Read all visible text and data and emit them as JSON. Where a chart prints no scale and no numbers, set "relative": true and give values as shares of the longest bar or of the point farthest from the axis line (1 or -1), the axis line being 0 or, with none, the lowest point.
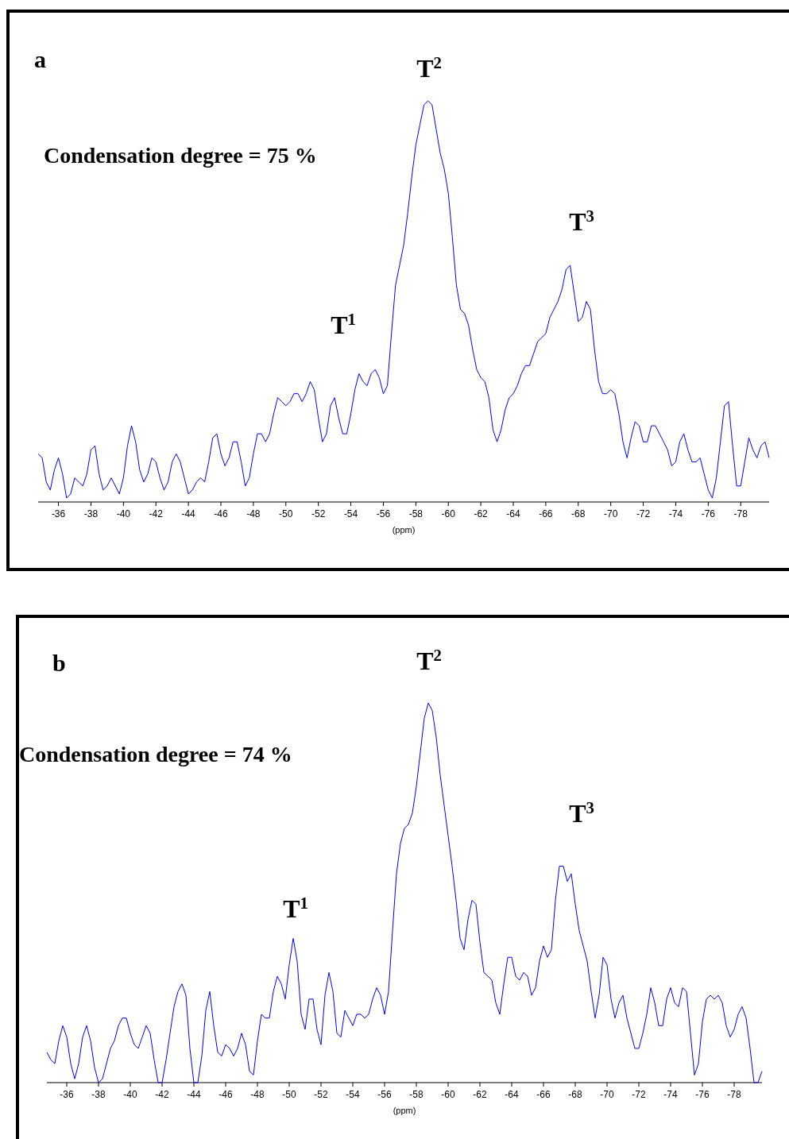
{
  "chart_data": [
    {
      "type": "line",
      "xlabel": "(ppm)",
      "relative": true,
      "xlim": [
        -34.75,
        -79.75
      ],
      "xticks": [
        -36,
        -38,
        -40,
        -42,
        -44,
        -46,
        -48,
        -50,
        -52,
        -54,
        -56,
        -58,
        -60,
        -62,
        -64,
        -66,
        -68,
        -70,
        -72,
        -74,
        -76,
        -78
      ],
      "x": [
        -34.75,
        -35,
        -35.25,
        -35.5,
        -35.75,
        -36,
        -36.25,
        -36.5,
        -36.75,
        -37,
        -37.25,
        -37.5,
        -37.75,
        -38,
        -38.25,
        -38.5,
        -38.75,
        -39,
        -39.25,
        -39.5,
        -39.75,
        -40,
        -40.25,
        -40.5,
        -40.75,
        -41,
        -41.25,
        -41.5,
        -41.75,
        -42,
        -42.25,
        -42.5,
        -42.75,
        -43,
        -43.25,
        -43.5,
        -43.75,
        -44,
        -44.25,
        -44.5,
        -44.75,
        -45,
        -45.25,
        -45.5,
        -45.75,
        -46,
        -46.25,
        -46.5,
        -46.75,
        -47,
        -47.25,
        -47.5,
        -47.75,
        -48,
        -48.25,
        -48.5,
        -48.75,
        -49,
        -49.25,
        -49.5,
        -49.75,
        -50,
        -50.25,
        -50.5,
        -50.75,
        -51,
        -51.25,
        -51.5,
        -51.75,
        -52,
        -52.25,
        -52.5,
        -52.75,
        -53,
        -53.25,
        -53.5,
        -53.75,
        -54,
        -54.25,
        -54.5,
        -54.75,
        -55,
        -55.25,
        -55.5,
        -55.75,
        -56,
        -56.25,
        -56.5,
        -56.75,
        -57,
        -57.25,
        -57.5,
        -57.75,
        -58,
        -58.25,
        -58.5,
        -58.75,
        -59,
        -59.25,
        -59.5,
        -59.75,
        -60,
        -60.25,
        -60.5,
        -60.75,
        -61,
        -61.25,
        -61.5,
        -61.75,
        -62,
        -62.25,
        -62.5,
        -62.75,
        -63,
        -63.25,
        -63.5,
        -63.75,
        -64,
        -64.25,
        -64.5,
        -64.75,
        -65,
        -65.25,
        -65.5,
        -65.75,
        -66,
        -66.25,
        -66.5,
        -66.75,
        -67,
        -67.25,
        -67.5,
        -67.75,
        -68,
        -68.25,
        -68.5,
        -68.75,
        -69,
        -69.25,
        -69.5,
        -69.75,
        -70,
        -70.25,
        -70.5,
        -70.75,
        -71,
        -71.25,
        -71.5,
        -71.75,
        -72,
        -72.25,
        -72.5,
        -72.75,
        -73,
        -73.25,
        -73.5,
        -73.75,
        -74,
        -74.25,
        -74.5,
        -74.75,
        -75,
        -75.25,
        -75.5,
        -75.75,
        -76,
        -76.25,
        -76.5,
        -76.75,
        -77,
        -77.25,
        -77.5,
        -77.75,
        -78,
        -78.25,
        -78.5,
        -78.75,
        -79,
        -79.25,
        -79.5,
        -79.75
      ],
      "series": [
        {
          "color": "#0000ff",
          "values": [
            0.12,
            0.11,
            0.05,
            0.03,
            0.08,
            0.11,
            0.07,
            0.01,
            0.02,
            0.06,
            0.05,
            0.04,
            0.07,
            0.13,
            0.14,
            0.07,
            0.03,
            0.04,
            0.06,
            0.04,
            0.02,
            0.06,
            0.14,
            0.19,
            0.15,
            0.08,
            0.05,
            0.07,
            0.11,
            0.1,
            0.06,
            0.03,
            0.05,
            0.1,
            0.12,
            0.1,
            0.06,
            0.02,
            0.03,
            0.05,
            0.06,
            0.05,
            0.1,
            0.16,
            0.17,
            0.12,
            0.09,
            0.11,
            0.15,
            0.15,
            0.1,
            0.04,
            0.06,
            0.12,
            0.17,
            0.17,
            0.15,
            0.17,
            0.22,
            0.26,
            0.25,
            0.24,
            0.25,
            0.27,
            0.27,
            0.25,
            0.27,
            0.3,
            0.28,
            0.21,
            0.15,
            0.17,
            0.24,
            0.26,
            0.21,
            0.17,
            0.17,
            0.22,
            0.28,
            0.32,
            0.3,
            0.29,
            0.32,
            0.33,
            0.31,
            0.27,
            0.29,
            0.42,
            0.54,
            0.59,
            0.64,
            0.72,
            0.81,
            0.89,
            0.94,
            0.99,
            1,
            0.99,
            0.93,
            0.87,
            0.83,
            0.77,
            0.66,
            0.54,
            0.48,
            0.47,
            0.44,
            0.38,
            0.33,
            0.31,
            0.3,
            0.26,
            0.18,
            0.15,
            0.18,
            0.23,
            0.26,
            0.27,
            0.29,
            0.32,
            0.34,
            0.34,
            0.37,
            0.4,
            0.41,
            0.42,
            0.46,
            0.48,
            0.5,
            0.53,
            0.58,
            0.59,
            0.52,
            0.45,
            0.46,
            0.5,
            0.48,
            0.38,
            0.3,
            0.27,
            0.27,
            0.28,
            0.27,
            0.22,
            0.15,
            0.11,
            0.16,
            0.2,
            0.19,
            0.15,
            0.15,
            0.19,
            0.19,
            0.17,
            0.15,
            0.13,
            0.09,
            0.1,
            0.15,
            0.17,
            0.13,
            0.1,
            0.1,
            0.11,
            0.07,
            0.03,
            0.01,
            0.06,
            0.15,
            0.24,
            0.25,
            0.14,
            0.04,
            0.04,
            0.1,
            0.16,
            0.13,
            0.11,
            0.14,
            0.15,
            0.11
          ]
        }
      ],
      "annotations": [
        "a",
        "Condensation degree = 75 %",
        "T$^{1}$",
        "T$^{2}$",
        "T$^{3}$"
      ]
    },
    {
      "type": "line",
      "xlabel": "(ppm)",
      "relative": true,
      "xlim": [
        -34.75,
        -79.75
      ],
      "xticks": [
        -36,
        -38,
        -40,
        -42,
        -44,
        -46,
        -48,
        -50,
        -52,
        -54,
        -56,
        -58,
        -60,
        -62,
        -64,
        -66,
        -68,
        -70,
        -72,
        -74,
        -76,
        -78
      ],
      "x": [
        -34.75,
        -35,
        -35.25,
        -35.5,
        -35.75,
        -36,
        -36.25,
        -36.5,
        -36.75,
        -37,
        -37.25,
        -37.5,
        -37.75,
        -38,
        -38.25,
        -38.5,
        -38.75,
        -39,
        -39.25,
        -39.5,
        -39.75,
        -40,
        -40.25,
        -40.5,
        -40.75,
        -41,
        -41.25,
        -41.5,
        -41.75,
        -42,
        -42.25,
        -42.5,
        -42.75,
        -43,
        -43.25,
        -43.5,
        -43.75,
        -44,
        -44.25,
        -44.5,
        -44.75,
        -45,
        -45.25,
        -45.5,
        -45.75,
        -46,
        -46.25,
        -46.5,
        -46.75,
        -47,
        -47.25,
        -47.5,
        -47.75,
        -48,
        -48.25,
        -48.5,
        -48.75,
        -49,
        -49.25,
        -49.5,
        -49.75,
        -50,
        -50.25,
        -50.5,
        -50.75,
        -51,
        -51.25,
        -51.5,
        -51.75,
        -52,
        -52.25,
        -52.5,
        -52.75,
        -53,
        -53.25,
        -53.5,
        -53.75,
        -54,
        -54.25,
        -54.5,
        -54.75,
        -55,
        -55.25,
        -55.5,
        -55.75,
        -56,
        -56.25,
        -56.5,
        -56.75,
        -57,
        -57.25,
        -57.5,
        -57.75,
        -58,
        -58.25,
        -58.5,
        -58.75,
        -59,
        -59.25,
        -59.5,
        -59.75,
        -60,
        -60.25,
        -60.5,
        -60.75,
        -61,
        -61.25,
        -61.5,
        -61.75,
        -62,
        -62.25,
        -62.5,
        -62.75,
        -63,
        -63.25,
        -63.5,
        -63.75,
        -64,
        -64.25,
        -64.5,
        -64.75,
        -65,
        -65.25,
        -65.5,
        -65.75,
        -66,
        -66.25,
        -66.5,
        -66.75,
        -67,
        -67.25,
        -67.5,
        -67.75,
        -68,
        -68.25,
        -68.5,
        -68.75,
        -69,
        -69.25,
        -69.5,
        -69.75,
        -70,
        -70.25,
        -70.5,
        -70.75,
        -71,
        -71.25,
        -71.5,
        -71.75,
        -72,
        -72.25,
        -72.5,
        -72.75,
        -73,
        -73.25,
        -73.5,
        -73.75,
        -74,
        -74.25,
        -74.5,
        -74.75,
        -75,
        -75.25,
        -75.5,
        -75.75,
        -76,
        -76.25,
        -76.5,
        -76.75,
        -77,
        -77.25,
        -77.5,
        -77.75,
        -78,
        -78.25,
        -78.5,
        -78.75,
        -79,
        -79.25,
        -79.5,
        -79.75
      ],
      "series": [
        {
          "color": "#0000ff",
          "values": [
            0.08,
            0.06,
            0.05,
            0.11,
            0.15,
            0.12,
            0.05,
            0.01,
            0.05,
            0.12,
            0.15,
            0.11,
            0.04,
            0,
            0.01,
            0.05,
            0.09,
            0.11,
            0.15,
            0.17,
            0.17,
            0.13,
            0.1,
            0.09,
            0.12,
            0.15,
            0.13,
            0.06,
            0,
            0,
            0.06,
            0.13,
            0.2,
            0.24,
            0.26,
            0.23,
            0.09,
            0,
            0,
            0.07,
            0.19,
            0.24,
            0.15,
            0.08,
            0.07,
            0.1,
            0.09,
            0.07,
            0.09,
            0.13,
            0.1,
            0.03,
            0.02,
            0.11,
            0.18,
            0.17,
            0.17,
            0.24,
            0.28,
            0.26,
            0.22,
            0.31,
            0.38,
            0.32,
            0.18,
            0.14,
            0.22,
            0.22,
            0.14,
            0.1,
            0.23,
            0.29,
            0.24,
            0.13,
            0.12,
            0.19,
            0.17,
            0.15,
            0.18,
            0.18,
            0.17,
            0.18,
            0.22,
            0.25,
            0.23,
            0.18,
            0.24,
            0.4,
            0.55,
            0.63,
            0.67,
            0.68,
            0.71,
            0.78,
            0.87,
            0.96,
            1,
            0.98,
            0.91,
            0.81,
            0.73,
            0.65,
            0.57,
            0.48,
            0.38,
            0.35,
            0.43,
            0.48,
            0.47,
            0.37,
            0.29,
            0.28,
            0.27,
            0.21,
            0.18,
            0.26,
            0.33,
            0.33,
            0.28,
            0.27,
            0.29,
            0.28,
            0.23,
            0.25,
            0.32,
            0.36,
            0.33,
            0.35,
            0.48,
            0.57,
            0.57,
            0.53,
            0.55,
            0.47,
            0.4,
            0.36,
            0.32,
            0.24,
            0.17,
            0.23,
            0.33,
            0.31,
            0.22,
            0.17,
            0.21,
            0.23,
            0.17,
            0.13,
            0.09,
            0.09,
            0.13,
            0.18,
            0.25,
            0.21,
            0.15,
            0.15,
            0.22,
            0.25,
            0.21,
            0.2,
            0.25,
            0.24,
            0.13,
            0.02,
            0.05,
            0.16,
            0.22,
            0.23,
            0.22,
            0.23,
            0.21,
            0.15,
            0.12,
            0.14,
            0.18,
            0.2,
            0.17,
            0.09,
            0,
            0,
            0.03
          ]
        }
      ],
      "annotations": [
        "b",
        "Condensation degree = 74 %",
        "T$^{1}$",
        "T$^{2}$",
        "T$^{3}$"
      ]
    }
  ]
}
